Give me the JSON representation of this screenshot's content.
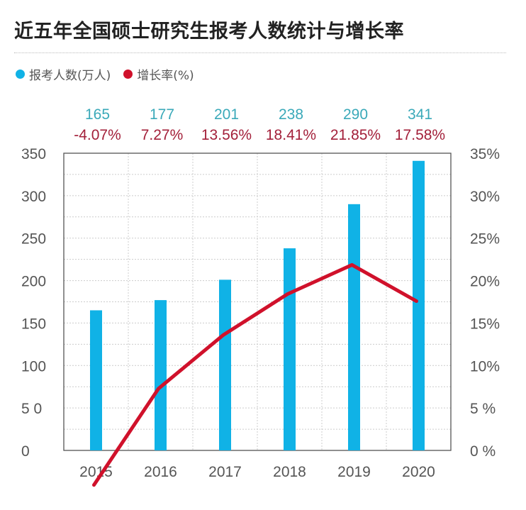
{
  "chart_data": {
    "type": "bar+line",
    "title": "近五年全国硕士研究生报考人数统计与增长率",
    "categories": [
      "2015",
      "2016",
      "2017",
      "2018",
      "2019",
      "2020"
    ],
    "series": [
      {
        "name": "报考人数(万人)",
        "type": "bar",
        "axis": "left",
        "color": "#10b2e6",
        "values": [
          165,
          177,
          201,
          238,
          290,
          341
        ]
      },
      {
        "name": "增长率(%)",
        "type": "line",
        "axis": "right",
        "color": "#d0112b",
        "values": [
          -4.07,
          7.27,
          13.56,
          18.41,
          21.85,
          17.58
        ]
      }
    ],
    "value_labels": [
      "165",
      "177",
      "201",
      "238",
      "290",
      "341"
    ],
    "rate_labels": [
      "-4.07%",
      "7.27%",
      "13.56%",
      "18.41%",
      "21.85%",
      "17.58%"
    ],
    "left_axis": {
      "range": [
        0,
        350
      ],
      "ticks": [
        "0",
        "5 0",
        "100",
        "150",
        "200",
        "250",
        "300",
        "350"
      ]
    },
    "right_axis": {
      "range": [
        0,
        35
      ],
      "ticks": [
        "0 %",
        "5 %",
        "10%",
        "15%",
        "20%",
        "25%",
        "30%",
        "35%"
      ]
    },
    "grid": true,
    "legend_position": "top-left",
    "label_colors": {
      "value": "#3aa9b9",
      "rate": "#a3203a"
    }
  }
}
